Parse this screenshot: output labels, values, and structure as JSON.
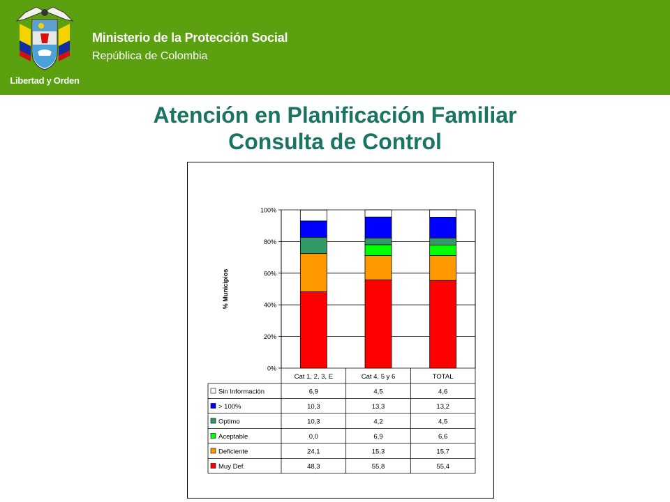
{
  "header": {
    "ministry": "Ministerio de la Protección Social",
    "republic": "República de Colombia",
    "motto": "Libertad y Orden",
    "background": "#5aa00f"
  },
  "slide": {
    "title_line1": "Atención en Planificación Familiar",
    "title_line2": "Consulta de Control",
    "title_color": "#1a7462"
  },
  "chart_data": {
    "type": "bar",
    "stacked": true,
    "percent": true,
    "categories": [
      "Cat 1, 2, 3, E",
      "Cat 4, 5 y 6",
      "TOTAL"
    ],
    "ylabel": "% Municipios",
    "ylim": [
      0,
      100
    ],
    "yticks": [
      "0%",
      "20%",
      "40%",
      "60%",
      "80%",
      "100%"
    ],
    "grid": true,
    "legend": "table-below",
    "series": [
      {
        "name": "Muy Def.",
        "color": "#ff0000",
        "values": [
          48.3,
          55.8,
          55.4
        ],
        "labels": [
          "48,3",
          "55,8",
          "55,4"
        ]
      },
      {
        "name": "Deficiente",
        "color": "#ff9900",
        "values": [
          24.1,
          15.3,
          15.7
        ],
        "labels": [
          "24,1",
          "15,3",
          "15,7"
        ]
      },
      {
        "name": "Aceptable",
        "color": "#00ff00",
        "values": [
          0.0,
          6.9,
          6.6
        ],
        "labels": [
          "0,0",
          "6,9",
          "6,6"
        ]
      },
      {
        "name": "Optimo",
        "color": "#339966",
        "values": [
          10.3,
          4.2,
          4.5
        ],
        "labels": [
          "10,3",
          "4,2",
          "4,5"
        ]
      },
      {
        "name": "> 100%",
        "color": "#0000ff",
        "values": [
          10.3,
          13.3,
          13.2
        ],
        "labels": [
          "10,3",
          "13,3",
          "13,2"
        ]
      },
      {
        "name": "Sin Información",
        "color": "#ffffff",
        "values": [
          6.9,
          4.5,
          4.6
        ],
        "labels": [
          "6,9",
          "4,5",
          "4,6"
        ]
      }
    ]
  }
}
